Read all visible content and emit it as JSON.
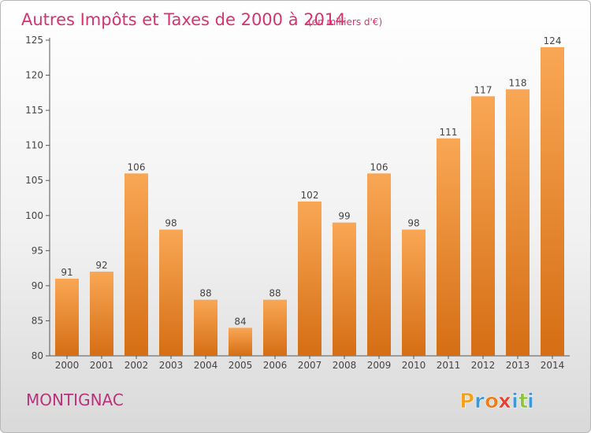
{
  "chart_data": {
    "type": "bar",
    "title": "Autres Impôts et Taxes de 2000 à 2014",
    "subtitle": "(en milliers d'€)",
    "categories": [
      "2000",
      "2001",
      "2002",
      "2003",
      "2004",
      "2005",
      "2006",
      "2007",
      "2008",
      "2009",
      "2010",
      "2011",
      "2012",
      "2013",
      "2014"
    ],
    "values": [
      91,
      92,
      106,
      98,
      88,
      84,
      88,
      102,
      99,
      106,
      98,
      111,
      117,
      118,
      124
    ],
    "data_labels": [
      "91",
      "92",
      "106",
      "98",
      "88",
      "84",
      "88",
      "102",
      "99",
      "106",
      "98",
      "111",
      "117",
      "118",
      "124"
    ],
    "yticks": [
      80,
      85,
      90,
      95,
      100,
      105,
      110,
      115,
      120,
      125
    ],
    "ylim": [
      80,
      125
    ],
    "xlabel": "",
    "ylabel": "",
    "grid": false,
    "legend": "none",
    "colors": {
      "bar_light": "#f9a755",
      "bar_dark": "#d56e14",
      "title": "#d6336f",
      "city": "#b8337a",
      "axis": "#555555",
      "label": "#444444"
    }
  },
  "footer": {
    "city": "MONTIGNAC",
    "brand_letters": [
      "P",
      "r",
      "o",
      "x",
      "i",
      "t",
      "i"
    ],
    "brand_colors": [
      "#f6a11a",
      "#3a9ad9",
      "#f07d1a",
      "#e8402f",
      "#3a9ad9",
      "#8cc63f",
      "#3a9ad9"
    ]
  }
}
